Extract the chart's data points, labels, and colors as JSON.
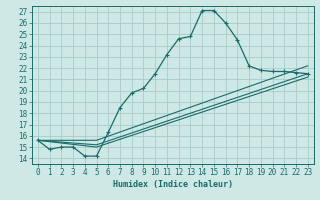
{
  "xlabel": "Humidex (Indice chaleur)",
  "xlim": [
    -0.5,
    23.5
  ],
  "ylim": [
    13.5,
    27.5
  ],
  "xticks": [
    0,
    1,
    2,
    3,
    4,
    5,
    6,
    7,
    8,
    9,
    10,
    11,
    12,
    13,
    14,
    15,
    16,
    17,
    18,
    19,
    20,
    21,
    22,
    23
  ],
  "yticks": [
    14,
    15,
    16,
    17,
    18,
    19,
    20,
    21,
    22,
    23,
    24,
    25,
    26,
    27
  ],
  "bg_color": "#cde8e5",
  "grid_color": "#a8ccc9",
  "line_color": "#1a6b6b",
  "line1_x": [
    0,
    1,
    2,
    3,
    4,
    5,
    6,
    7,
    8,
    9,
    10,
    11,
    12,
    13,
    14,
    15,
    16,
    17,
    18,
    19,
    20,
    21,
    22,
    23
  ],
  "line1_y": [
    15.6,
    14.8,
    15.0,
    15.0,
    14.2,
    14.2,
    16.3,
    18.5,
    19.8,
    20.2,
    21.5,
    23.2,
    24.6,
    24.8,
    27.1,
    27.1,
    26.0,
    24.5,
    22.2,
    21.8,
    21.7,
    21.7,
    21.6,
    21.5
  ],
  "line2_x": [
    0,
    5,
    23
  ],
  "line2_y": [
    15.6,
    15.0,
    21.2
  ],
  "line3_x": [
    0,
    5,
    23
  ],
  "line3_y": [
    15.6,
    15.2,
    21.5
  ],
  "line4_x": [
    0,
    5,
    23
  ],
  "line4_y": [
    15.6,
    15.6,
    22.2
  ]
}
